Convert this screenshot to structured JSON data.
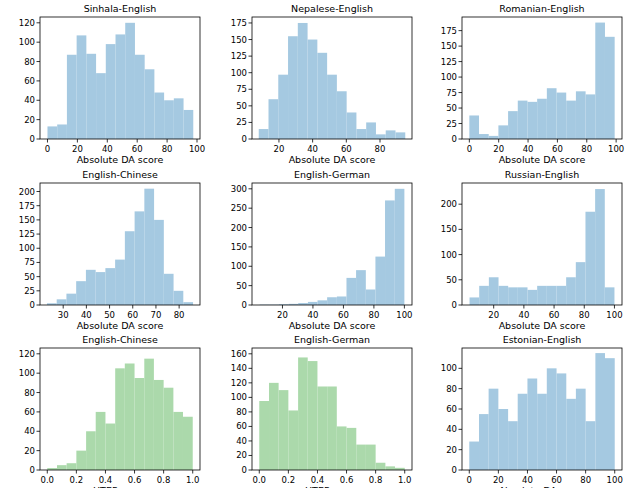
{
  "chart_data": [
    {
      "type": "histogram",
      "title": "Sinhala-English",
      "xlabel": "Absolute DA score",
      "color": "#a5c9e1",
      "bins": [
        0,
        6.5,
        13,
        19.5,
        26,
        32.5,
        39,
        45.5,
        52,
        58.5,
        65,
        71.5,
        78,
        84.5,
        91,
        97.5
      ],
      "values": [
        13,
        15,
        87,
        107,
        88,
        68,
        98,
        108,
        120,
        87,
        72,
        48,
        40,
        42,
        30
      ],
      "xlim": [
        -5,
        102
      ],
      "ylim": [
        0,
        126
      ],
      "xticks": [
        0,
        20,
        40,
        60,
        80,
        100
      ],
      "yticks": [
        0,
        20,
        40,
        60,
        80,
        100,
        120
      ]
    },
    {
      "type": "histogram",
      "title": "Nepalese-English",
      "xlabel": "Absolute DA score",
      "color": "#a5c9e1",
      "bins": [
        8,
        13.8,
        19.6,
        25.4,
        31.2,
        37,
        42.8,
        48.6,
        54.4,
        60.2,
        66,
        71.8,
        77.6,
        83.4,
        89.2,
        95
      ],
      "values": [
        15,
        60,
        97,
        155,
        175,
        150,
        130,
        97,
        72,
        40,
        15,
        25,
        7,
        13,
        10
      ],
      "xlim": [
        4,
        99
      ],
      "ylim": [
        0,
        184
      ],
      "xticks": [
        20,
        40,
        60,
        80
      ],
      "yticks": [
        0,
        25,
        50,
        75,
        100,
        125,
        150,
        175
      ]
    },
    {
      "type": "histogram",
      "title": "Romanian-English",
      "xlabel": "Absolute DA score",
      "color": "#a5c9e1",
      "bins": [
        0,
        6.6,
        13.2,
        19.8,
        26.4,
        33,
        39.6,
        46.2,
        52.8,
        59.4,
        66,
        72.6,
        79.2,
        85.8,
        92.4,
        99
      ],
      "values": [
        38,
        8,
        5,
        22,
        45,
        62,
        60,
        65,
        82,
        75,
        62,
        77,
        72,
        188,
        165
      ],
      "xlim": [
        -5,
        104
      ],
      "ylim": [
        0,
        197
      ],
      "xticks": [
        0,
        20,
        40,
        60,
        80,
        100
      ],
      "yticks": [
        0,
        25,
        50,
        75,
        100,
        125,
        150,
        175
      ]
    },
    {
      "type": "histogram",
      "title": "English-Chinese",
      "xlabel": "Absolute DA score",
      "color": "#a5c9e1",
      "bins": [
        23,
        27.2,
        31.4,
        35.6,
        39.8,
        44,
        48.2,
        52.4,
        56.6,
        60.8,
        65,
        69.2,
        73.4,
        77.6,
        81.8,
        86
      ],
      "values": [
        3,
        10,
        20,
        42,
        62,
        58,
        65,
        80,
        130,
        165,
        205,
        150,
        55,
        25,
        5
      ],
      "xlim": [
        20,
        89
      ],
      "ylim": [
        0,
        215
      ],
      "xticks": [
        30,
        40,
        50,
        60,
        70,
        80
      ],
      "yticks": [
        0,
        25,
        50,
        75,
        100,
        125,
        150,
        175,
        200
      ]
    },
    {
      "type": "histogram",
      "title": "English-German",
      "xlabel": "Absolute DA score",
      "color": "#a5c9e1",
      "bins": [
        5,
        11.3,
        17.7,
        24,
        30.3,
        36.7,
        43,
        49.3,
        55.7,
        62,
        68.3,
        74.7,
        81,
        87.3,
        93.7,
        100
      ],
      "values": [
        1,
        1,
        2,
        3,
        5,
        8,
        12,
        20,
        22,
        70,
        90,
        40,
        125,
        270,
        300
      ],
      "xlim": [
        0,
        105
      ],
      "ylim": [
        0,
        315
      ],
      "xticks": [
        20,
        40,
        60,
        80,
        100
      ],
      "yticks": [
        0,
        50,
        100,
        150,
        200,
        250,
        300
      ]
    },
    {
      "type": "histogram",
      "title": "Russian-English",
      "xlabel": "Absolute DA score",
      "color": "#a5c9e1",
      "bins": [
        4,
        10.4,
        16.8,
        23.2,
        29.6,
        36,
        42.4,
        48.8,
        55.2,
        61.6,
        68,
        74.4,
        80.8,
        87.2,
        93.6,
        100
      ],
      "values": [
        15,
        38,
        55,
        38,
        35,
        35,
        30,
        38,
        38,
        38,
        55,
        85,
        185,
        230,
        35
      ],
      "xlim": [
        -1,
        105
      ],
      "ylim": [
        0,
        242
      ],
      "xticks": [
        20,
        40,
        60,
        80,
        100
      ],
      "yticks": [
        0,
        50,
        100,
        150,
        200
      ]
    },
    {
      "type": "histogram",
      "title": "English-Chinese",
      "xlabel": "HTER score",
      "color": "#abd9ab",
      "bins": [
        0,
        0.067,
        0.133,
        0.2,
        0.267,
        0.333,
        0.4,
        0.467,
        0.533,
        0.6,
        0.667,
        0.733,
        0.8,
        0.867,
        0.933,
        1
      ],
      "values": [
        2,
        5,
        7,
        20,
        40,
        60,
        48,
        105,
        110,
        95,
        115,
        93,
        85,
        60,
        55
      ],
      "xlim": [
        -0.05,
        1.05
      ],
      "ylim": [
        0,
        126
      ],
      "xticks": [
        {
          "value": 0,
          "label": "0.0"
        },
        0.2,
        0.4,
        0.6,
        0.8,
        {
          "value": 1,
          "label": "1.0"
        }
      ],
      "yticks": [
        0,
        20,
        40,
        60,
        80,
        100,
        120
      ]
    },
    {
      "type": "histogram",
      "title": "English-German",
      "xlabel": "HTER score",
      "color": "#abd9ab",
      "bins": [
        0,
        0.067,
        0.133,
        0.2,
        0.267,
        0.333,
        0.4,
        0.467,
        0.533,
        0.6,
        0.667,
        0.733,
        0.8,
        0.867,
        0.933,
        1
      ],
      "values": [
        95,
        120,
        110,
        82,
        155,
        150,
        115,
        115,
        60,
        58,
        35,
        35,
        10,
        5,
        3
      ],
      "xlim": [
        -0.05,
        1.05
      ],
      "ylim": [
        0,
        168
      ],
      "xticks": [
        {
          "value": 0,
          "label": "0.0"
        },
        0.2,
        0.4,
        0.6,
        0.8,
        {
          "value": 1,
          "label": "1.0"
        }
      ],
      "yticks": [
        0,
        20,
        40,
        60,
        80,
        100,
        120,
        140,
        160
      ]
    },
    {
      "type": "histogram",
      "title": "Estonian-English",
      "xlabel": "Absolute DA score",
      "color": "#a5c9e1",
      "bins": [
        0,
        6.7,
        13.3,
        20,
        26.7,
        33.3,
        40,
        46.7,
        53.3,
        60,
        66.7,
        73.3,
        80,
        86.7,
        93.3,
        100
      ],
      "values": [
        28,
        55,
        80,
        60,
        48,
        75,
        90,
        75,
        100,
        95,
        70,
        80,
        48,
        115,
        110
      ],
      "xlim": [
        -5,
        105
      ],
      "ylim": [
        0,
        120
      ],
      "xticks": [
        0,
        20,
        40,
        60,
        80,
        100
      ],
      "yticks": [
        0,
        20,
        40,
        60,
        80,
        100
      ]
    }
  ]
}
